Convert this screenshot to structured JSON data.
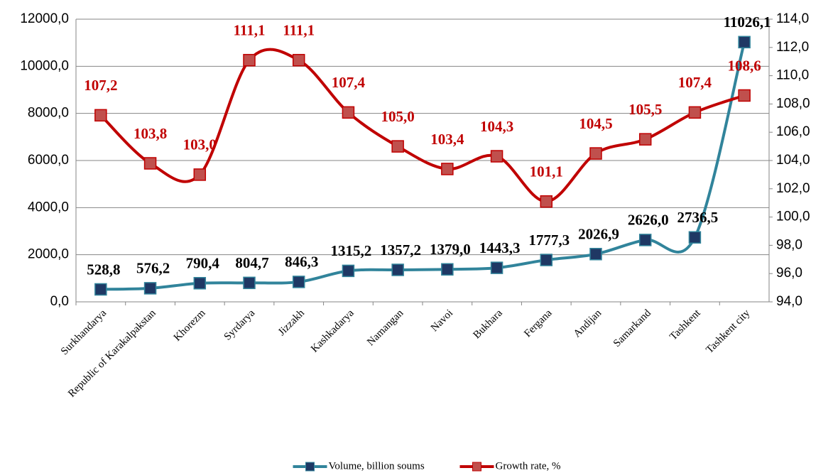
{
  "chart_data": {
    "type": "line",
    "categories": [
      "Surkhandarya",
      "Republic of Karakalpakstan",
      "Khorezm",
      "Syrdarya",
      "Jizzakh",
      "Kashkadarya",
      "Namangan",
      "Navoi",
      "Bukhara",
      "Fergana",
      "Andijan",
      "Samarkand",
      "Tashkent",
      "Tashkent city"
    ],
    "series": [
      {
        "name": "Volume, billion soums",
        "color": "#31849b",
        "marker_color": "#1f3864",
        "values": [
          528.8,
          576.2,
          790.4,
          804.7,
          846.3,
          1315.2,
          1357.2,
          1379.0,
          1443.3,
          1777.3,
          2026.9,
          2626.0,
          2736.5,
          11026.1
        ],
        "value_labels": [
          "528,8",
          "576,2",
          "790,4",
          "804,7",
          "846,3",
          "1315,2",
          "1357,2",
          "1379,0",
          "1443,3",
          "1777,3",
          "2026,9",
          "2626,0",
          "2736,5",
          "11026,1"
        ]
      },
      {
        "name": "Growth rate, %",
        "color": "#c00000",
        "marker_color": "#c0504d",
        "axis": "y2",
        "values": [
          107.2,
          103.8,
          103.0,
          111.1,
          111.1,
          107.4,
          105.0,
          103.4,
          104.3,
          101.1,
          104.5,
          105.5,
          107.4,
          108.6
        ],
        "value_labels": [
          "107,2",
          "103,8",
          "103,0",
          "111,1",
          "111,1",
          "107,4",
          "105,0",
          "103,4",
          "104,3",
          "101,1",
          "104,5",
          "105,5",
          "107,4",
          "108,6"
        ]
      }
    ],
    "ylim": [
      0,
      12000
    ],
    "yticks": [
      {
        "value": 0,
        "label": "0,0"
      },
      {
        "value": 2000,
        "label": "2000,0"
      },
      {
        "value": 4000,
        "label": "4000,0"
      },
      {
        "value": 6000,
        "label": "6000,0"
      },
      {
        "value": 8000,
        "label": "8000,0"
      },
      {
        "value": 10000,
        "label": "10000,0"
      },
      {
        "value": 12000,
        "label": "12000,0"
      }
    ],
    "y2lim": [
      94,
      114
    ],
    "y2ticks": [
      {
        "value": 94,
        "label": "94,0"
      },
      {
        "value": 96,
        "label": "96,0"
      },
      {
        "value": 98,
        "label": "98,0"
      },
      {
        "value": 100,
        "label": "100,0"
      },
      {
        "value": 102,
        "label": "102,0"
      },
      {
        "value": 104,
        "label": "104,0"
      },
      {
        "value": 106,
        "label": "106,0"
      },
      {
        "value": 108,
        "label": "108,0"
      },
      {
        "value": 110,
        "label": "110,0"
      },
      {
        "value": 112,
        "label": "112,0"
      },
      {
        "value": 114,
        "label": "114,0"
      }
    ],
    "grid": true,
    "legend": "bottom"
  }
}
